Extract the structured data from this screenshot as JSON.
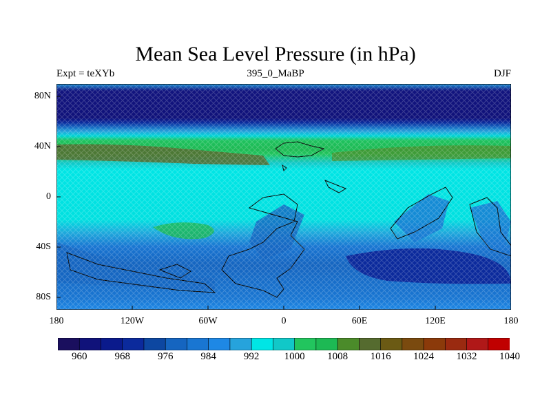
{
  "title": "Mean Sea Level Pressure (in hPa)",
  "left_label": "Expt = teXYb",
  "center_label": "395_0_MaBP",
  "right_label": "DJF",
  "lat_ticks": [
    "80N",
    "40N",
    "0",
    "40S",
    "80S"
  ],
  "lon_ticks": [
    "180",
    "120W",
    "60W",
    "0",
    "60E",
    "120E",
    "180"
  ],
  "colorbar": {
    "labels": [
      "960",
      "968",
      "976",
      "984",
      "992",
      "1000",
      "1008",
      "1016",
      "1024",
      "1032",
      "1040"
    ],
    "colors": [
      "#1a0f5e",
      "#10127a",
      "#0a1a8c",
      "#0b2a9c",
      "#0d47a1",
      "#1565c0",
      "#1976d2",
      "#1e88e5",
      "#26a3dc",
      "#00e5e5",
      "#11c8c8",
      "#22c55e",
      "#1db954",
      "#4b8b2a",
      "#556b2f",
      "#6b5a14",
      "#7a4a0f",
      "#8b3a0a",
      "#9a2a10",
      "#b01818",
      "#c00000"
    ]
  },
  "map": {
    "field": "mean sea level pressure",
    "lat_range": [
      -90,
      90
    ],
    "lon_range": [
      -180,
      180
    ]
  }
}
